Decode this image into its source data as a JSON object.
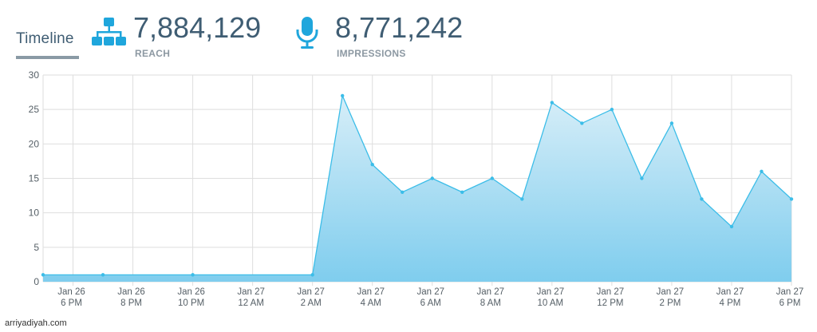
{
  "header": {
    "tab_label": "Timeline",
    "reach": {
      "value": "7,884,129",
      "label": "REACH",
      "icon": "sitemap-icon"
    },
    "impressions": {
      "value": "8,771,242",
      "label": "IMPRESSIONS",
      "icon": "microphone-icon"
    }
  },
  "colors": {
    "accent": "#1fa6dc",
    "line": "#3bbde8",
    "area_top": "#d7eef8",
    "area_bottom": "#7fcdee",
    "grid": "#dedede",
    "title_text": "#3f5d73"
  },
  "chart_data": {
    "type": "area",
    "ylim": [
      0,
      30
    ],
    "yticks": [
      0,
      5,
      10,
      15,
      20,
      25,
      30
    ],
    "x_range": [
      0,
      25
    ],
    "xtick_positions": [
      1,
      3,
      5,
      7,
      9,
      11,
      13,
      15,
      17,
      19,
      21,
      23,
      25
    ],
    "xtick_labels": [
      [
        "Jan 26",
        "6 PM"
      ],
      [
        "Jan 26",
        "8 PM"
      ],
      [
        "Jan 26",
        "10 PM"
      ],
      [
        "Jan 27",
        "12 AM"
      ],
      [
        "Jan 27",
        "2 AM"
      ],
      [
        "Jan 27",
        "4 AM"
      ],
      [
        "Jan 27",
        "6 AM"
      ],
      [
        "Jan 27",
        "8 AM"
      ],
      [
        "Jan 27",
        "10 AM"
      ],
      [
        "Jan 27",
        "12 PM"
      ],
      [
        "Jan 27",
        "2 PM"
      ],
      [
        "Jan 27",
        "4 PM"
      ],
      [
        "Jan 27",
        "6 PM"
      ]
    ],
    "grid": true,
    "series": [
      {
        "points": [
          [
            0,
            1
          ],
          [
            2,
            1
          ],
          [
            5,
            1
          ],
          [
            9,
            1
          ],
          [
            10,
            27
          ],
          [
            11,
            17
          ],
          [
            12,
            13
          ],
          [
            13,
            15
          ],
          [
            14,
            13
          ],
          [
            15,
            15
          ],
          [
            16,
            12
          ],
          [
            17,
            26
          ],
          [
            18,
            23
          ],
          [
            19,
            25
          ],
          [
            20,
            15
          ],
          [
            21,
            23
          ],
          [
            22,
            12
          ],
          [
            23,
            8
          ],
          [
            24,
            16
          ],
          [
            25,
            12
          ]
        ]
      }
    ]
  },
  "watermark": "arriyadiyah.com"
}
